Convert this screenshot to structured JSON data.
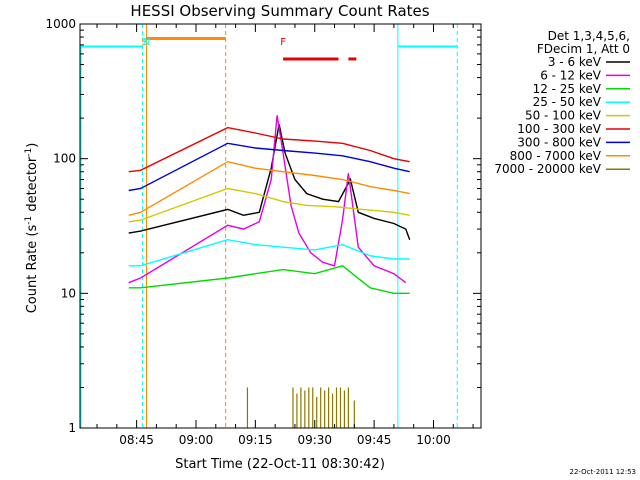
{
  "chart_data": {
    "type": "line",
    "title": "HESSI Observing Summary Count Rates",
    "xlabel": "Start Time (22-Oct-11 08:30:42)",
    "ylabel": "Count Rate (s",
    "ylabel_sup": "-1",
    "ylabel_rest": " detector",
    "ylabel_close": ")",
    "y_scale": "log",
    "ylim": [
      1,
      1000
    ],
    "xlim": [
      "08:30:42",
      "10:12:00"
    ],
    "y_ticks": [
      "1",
      "10",
      "100",
      "1000"
    ],
    "x_ticks": [
      "08:45",
      "09:00",
      "09:15",
      "09:30",
      "09:45",
      "10:00"
    ],
    "legend_header": [
      "Det 1,3,4,5,6,",
      "FDecim 1, Att 0"
    ],
    "timestamp": "22-Oct-2011 12:53",
    "colors": {
      "3 - 6 keV": "#000000",
      "6 - 12 keV": "#e600e6",
      "12 - 25 keV": "#00dc00",
      "25 - 50 keV": "#00ffff",
      "50 - 100 keV": "#d2c800",
      "100 - 300 keV": "#e60000",
      "300 - 800 keV": "#0000dc",
      "800 - 7000 keV": "#ff8c00",
      "7000 - 20000 keV": "#8c7800"
    },
    "markers": [
      {
        "label": "S",
        "color": "#ff8c00",
        "time": "08:47:00"
      },
      {
        "label": "N",
        "color": "#00ffff",
        "time": "08:47:30"
      },
      {
        "label": "F",
        "color": "#e60000",
        "time": "09:22:00"
      }
    ],
    "segments": [
      {
        "name": "night",
        "color": "#00ffff",
        "start": "08:30:42",
        "end": "08:46:30",
        "level": 680
      },
      {
        "name": "saa",
        "color": "#ff8c00",
        "start": "08:47:30",
        "end": "09:07:30",
        "level": 780
      },
      {
        "name": "night",
        "color": "#00ffff",
        "start": "09:51:00",
        "end": "10:06:00",
        "level": 680
      },
      {
        "name": "flare",
        "color": "#e60000",
        "start": "09:22:00",
        "end": "09:36:00",
        "level": 550
      },
      {
        "name": "flare",
        "color": "#e60000",
        "start": "09:38:30",
        "end": "09:40:30",
        "level": 550
      }
    ],
    "series": [
      {
        "name": "3 - 6 keV",
        "x": [
          "08:43:00",
          "08:46:00",
          "09:08:00",
          "09:12:00",
          "09:16:00",
          "09:19:00",
          "09:21:00",
          "09:22:30",
          "09:25:00",
          "09:28:00",
          "09:32:00",
          "09:36:00",
          "09:39:00",
          "09:41:00",
          "09:45:00",
          "09:50:00",
          "09:53:00",
          "09:54:00"
        ],
        "y": [
          28,
          29,
          42,
          38,
          40,
          85,
          180,
          110,
          70,
          55,
          50,
          48,
          70,
          40,
          36,
          33,
          30,
          25
        ]
      },
      {
        "name": "6 - 12 keV",
        "x": [
          "08:43:00",
          "08:46:00",
          "09:08:00",
          "09:12:00",
          "09:16:00",
          "09:19:00",
          "09:20:30",
          "09:22:00",
          "09:24:00",
          "09:26:00",
          "09:29:00",
          "09:32:00",
          "09:35:00",
          "09:37:00",
          "09:38:30",
          "09:41:00",
          "09:45:00",
          "09:50:00",
          "09:53:00"
        ],
        "y": [
          12,
          13,
          32,
          30,
          34,
          70,
          210,
          110,
          45,
          28,
          20,
          17,
          16,
          35,
          78,
          22,
          16,
          14,
          12
        ]
      },
      {
        "name": "12 - 25 keV",
        "x": [
          "08:43:00",
          "08:46:00",
          "09:08:00",
          "09:15:00",
          "09:22:00",
          "09:30:00",
          "09:37:00",
          "09:44:00",
          "09:50:00",
          "09:54:00"
        ],
        "y": [
          11,
          11,
          13,
          14,
          15,
          14,
          16,
          11,
          10,
          10
        ]
      },
      {
        "name": "25 - 50 keV",
        "x": [
          "08:43:00",
          "08:46:00",
          "09:08:00",
          "09:15:00",
          "09:22:00",
          "09:30:00",
          "09:37:00",
          "09:44:00",
          "09:50:00",
          "09:54:00"
        ],
        "y": [
          16,
          16,
          25,
          23,
          22,
          21,
          23,
          19,
          18,
          18
        ]
      },
      {
        "name": "50 - 100 keV",
        "x": [
          "08:43:00",
          "08:46:00",
          "09:08:00",
          "09:15:00",
          "09:22:00",
          "09:28:00",
          "09:35:00",
          "09:42:00",
          "09:50:00",
          "09:54:00"
        ],
        "y": [
          34,
          35,
          60,
          55,
          48,
          45,
          44,
          42,
          40,
          38
        ]
      },
      {
        "name": "100 - 300 keV",
        "x": [
          "08:43:00",
          "08:46:00",
          "09:08:00",
          "09:15:00",
          "09:22:00",
          "09:30:00",
          "09:37:00",
          "09:44:00",
          "09:50:00",
          "09:54:00"
        ],
        "y": [
          80,
          82,
          170,
          155,
          140,
          135,
          130,
          115,
          100,
          95
        ]
      },
      {
        "name": "300 - 800 keV",
        "x": [
          "08:43:00",
          "08:46:00",
          "09:08:00",
          "09:15:00",
          "09:22:00",
          "09:30:00",
          "09:37:00",
          "09:44:00",
          "09:50:00",
          "09:54:00"
        ],
        "y": [
          58,
          60,
          130,
          120,
          115,
          110,
          105,
          95,
          85,
          80
        ]
      },
      {
        "name": "800 - 7000 keV",
        "x": [
          "08:43:00",
          "08:46:00",
          "09:08:00",
          "09:15:00",
          "09:22:00",
          "09:30:00",
          "09:37:00",
          "09:44:00",
          "09:50:00",
          "09:54:00"
        ],
        "y": [
          38,
          40,
          95,
          85,
          80,
          75,
          70,
          62,
          58,
          55
        ]
      },
      {
        "name": "7000 - 20000 keV",
        "x": [
          "09:13:00",
          "09:24:30",
          "09:25:30",
          "09:26:30",
          "09:27:30",
          "09:28:30",
          "09:29:30",
          "09:30:30",
          "09:31:30",
          "09:32:30",
          "09:33:30",
          "09:34:30",
          "09:35:30",
          "09:36:30",
          "09:37:30",
          "09:38:30",
          "09:40:00"
        ],
        "y": [
          2.0,
          2.0,
          1.8,
          2.0,
          1.9,
          2.0,
          2.0,
          1.7,
          2.0,
          1.9,
          2.0,
          1.8,
          2.0,
          2.0,
          1.9,
          2.0,
          1.6
        ]
      }
    ]
  }
}
